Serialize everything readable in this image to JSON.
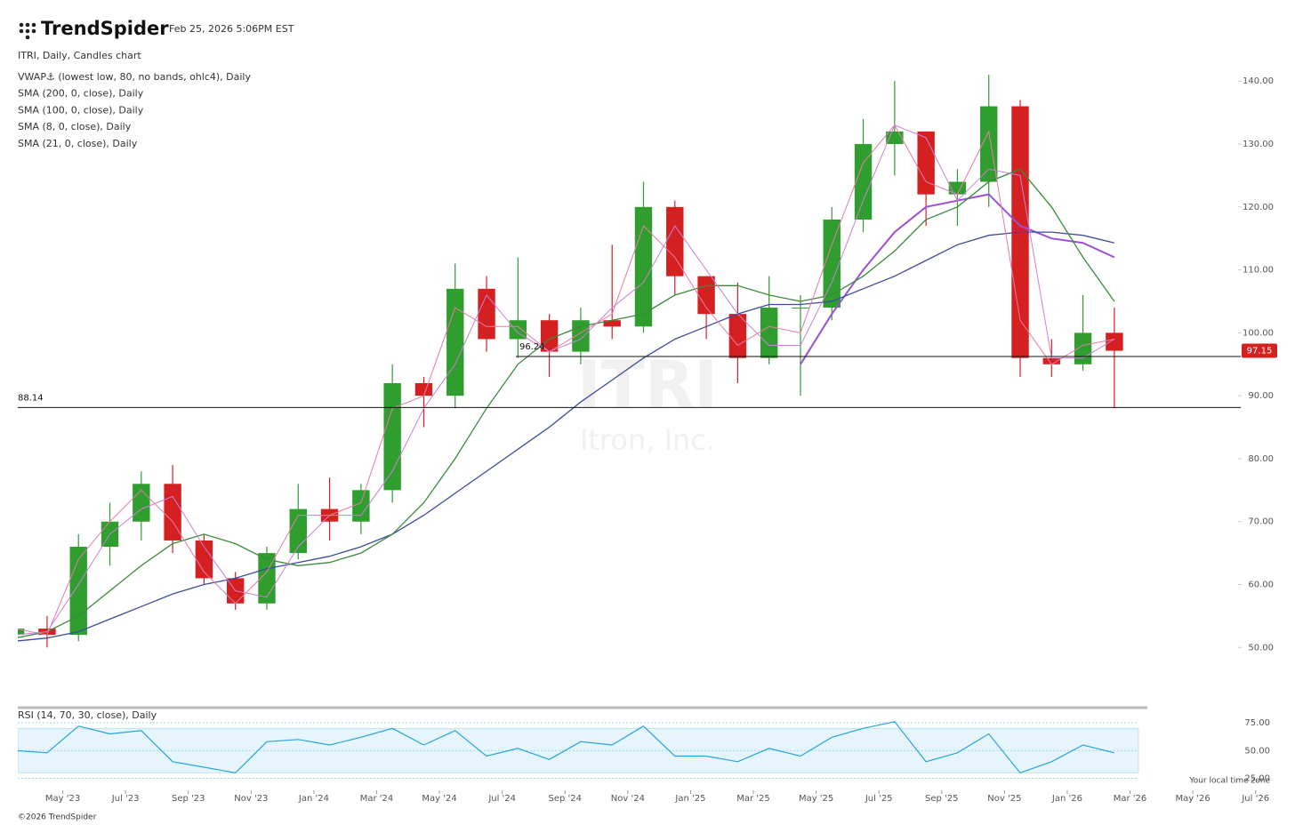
{
  "header": {
    "brand": "TrendSpider",
    "timestamp": "Feb 25, 2026 5:06PM EST"
  },
  "footer": {
    "copyright": "©2026 TrendSpider",
    "timezone_note": "Your local time zone"
  },
  "chart_data": [
    {
      "type": "candlestick",
      "title": "ITRI, Daily, Candles chart",
      "watermark": "ITRI",
      "watermark_subtitle": "Itron, Inc.",
      "x": [
        "2023-03",
        "2023-04",
        "2023-05",
        "2023-06",
        "2023-07",
        "2023-08",
        "2023-09",
        "2023-10",
        "2023-11",
        "2023-12",
        "2024-01",
        "2024-02",
        "2024-03",
        "2024-04",
        "2024-05",
        "2024-06",
        "2024-07",
        "2024-08",
        "2024-09",
        "2024-10",
        "2024-11",
        "2024-12",
        "2025-01",
        "2025-02",
        "2025-03",
        "2025-04",
        "2025-05",
        "2025-06",
        "2025-07",
        "2025-08",
        "2025-09",
        "2025-10",
        "2025-11",
        "2025-12",
        "2026-01",
        "2026-02"
      ],
      "open": [
        52,
        53,
        52,
        66,
        70,
        76,
        67,
        61,
        57,
        65,
        72,
        70,
        75,
        92,
        90,
        107,
        99,
        102,
        97,
        102,
        101,
        120,
        109,
        103,
        96,
        104,
        104,
        118,
        130,
        132,
        122,
        124,
        136,
        96,
        95,
        100
      ],
      "high": [
        54,
        55,
        68,
        73,
        78,
        79,
        68,
        62,
        66,
        76,
        77,
        76,
        95,
        93,
        111,
        109,
        112,
        103,
        104,
        114,
        124,
        121,
        109,
        108,
        109,
        106,
        120,
        134,
        140,
        132,
        126,
        141,
        137,
        99,
        106,
        104
      ],
      "low": [
        51,
        50,
        51,
        63,
        67,
        65,
        60,
        56,
        56,
        64,
        67,
        68,
        73,
        85,
        88,
        97,
        96,
        93,
        95,
        99,
        100,
        106,
        99,
        92,
        95,
        90,
        102,
        116,
        125,
        117,
        117,
        120,
        93,
        93,
        94,
        88
      ],
      "close": [
        53,
        52,
        66,
        70,
        76,
        67,
        61,
        57,
        65,
        72,
        70,
        75,
        92,
        90,
        107,
        99,
        102,
        97,
        102,
        101,
        120,
        109,
        103,
        96,
        104,
        104,
        118,
        130,
        132,
        122,
        124,
        136,
        96,
        95,
        100,
        97.15
      ],
      "up_color": "#2f9e2f",
      "down_color": "#d42020",
      "series": [
        {
          "name": "VWAP⚓ (lowest low, 80, no bands, ohlc4), Daily",
          "color": "#9a4fd8",
          "values": [
            null,
            null,
            null,
            null,
            null,
            null,
            null,
            null,
            null,
            null,
            null,
            null,
            null,
            null,
            null,
            null,
            null,
            null,
            null,
            null,
            null,
            null,
            null,
            null,
            null,
            95,
            103,
            110,
            116,
            120,
            121,
            122,
            117,
            115,
            114.3,
            112
          ]
        },
        {
          "name": "SMA (200, 0, close), Daily",
          "color": "#3d4b9c",
          "values": [
            51,
            51.5,
            52.5,
            54.5,
            56.5,
            58.5,
            60,
            61,
            62.5,
            63.5,
            64.5,
            66,
            68,
            71,
            74.5,
            78,
            81.5,
            85,
            89,
            92.5,
            96,
            99,
            101,
            103,
            104.5,
            104.5,
            105,
            107,
            109,
            111.5,
            114,
            115.5,
            116,
            116,
            115.5,
            114.3
          ]
        },
        {
          "name": "SMA (100, 0, close), Daily",
          "color": "#3b8a3b",
          "values": [
            51.5,
            52.5,
            55,
            59,
            63,
            66.5,
            68,
            66.5,
            64,
            63,
            63.5,
            65,
            68,
            73,
            80,
            88,
            95,
            99,
            101,
            102,
            103,
            106,
            107.5,
            107.5,
            106,
            105,
            106,
            109,
            113,
            118,
            120,
            124,
            126,
            120,
            112,
            105
          ]
        },
        {
          "name": "SMA (8, 0, close), Daily",
          "color": "#e77aa6",
          "values": [
            53,
            52,
            64,
            70,
            75,
            70,
            62,
            57,
            62,
            71,
            71,
            73,
            88,
            90,
            104,
            101,
            101,
            97,
            100,
            103,
            117,
            112,
            104,
            98,
            101,
            100,
            114,
            127,
            133,
            124,
            122,
            132,
            102,
            95,
            98,
            99
          ]
        },
        {
          "name": "SMA (21, 0, close), Daily",
          "color": "#cc7fd6",
          "values": [
            52,
            52.5,
            60,
            68,
            72,
            74,
            66,
            59,
            58,
            66,
            71,
            71,
            78,
            88,
            95,
            106,
            100,
            97,
            99,
            104,
            108,
            117,
            110,
            103,
            98,
            98,
            108,
            121,
            133,
            131,
            121,
            126,
            125,
            96,
            96,
            99
          ]
        }
      ],
      "hlines": [
        96.24,
        88.14
      ],
      "last_price": 97.15,
      "ylim": [
        41,
        143
      ],
      "yticks": [
        {
          "value": 50,
          "label": "50.00"
        },
        {
          "value": 60,
          "label": "60.00"
        },
        {
          "value": 70,
          "label": "70.00"
        },
        {
          "value": 80,
          "label": "80.00"
        },
        {
          "value": 90,
          "label": "90.00"
        },
        {
          "value": 100,
          "label": "100.00"
        },
        {
          "value": 110,
          "label": "110.00"
        },
        {
          "value": 120,
          "label": "120.00"
        },
        {
          "value": 130,
          "label": "130.00"
        },
        {
          "value": 140,
          "label": "140.00"
        }
      ],
      "xlim": [
        "2023-03",
        "2026-08"
      ],
      "xticks": [
        {
          "value": "2023-05",
          "label": "May '23"
        },
        {
          "value": "2023-07",
          "label": "Jul '23"
        },
        {
          "value": "2023-09",
          "label": "Sep '23"
        },
        {
          "value": "2023-11",
          "label": "Nov '23"
        },
        {
          "value": "2024-01",
          "label": "Jan '24"
        },
        {
          "value": "2024-03",
          "label": "Mar '24"
        },
        {
          "value": "2024-05",
          "label": "May '24"
        },
        {
          "value": "2024-07",
          "label": "Jul '24"
        },
        {
          "value": "2024-09",
          "label": "Sep '24"
        },
        {
          "value": "2024-11",
          "label": "Nov '24"
        },
        {
          "value": "2025-01",
          "label": "Jan '25"
        },
        {
          "value": "2025-03",
          "label": "Mar '25"
        },
        {
          "value": "2025-05",
          "label": "May '25"
        },
        {
          "value": "2025-07",
          "label": "Jul '25"
        },
        {
          "value": "2025-09",
          "label": "Sep '25"
        },
        {
          "value": "2025-11",
          "label": "Nov '25"
        },
        {
          "value": "2026-01",
          "label": "Jan '26"
        },
        {
          "value": "2026-03",
          "label": "Mar '26"
        },
        {
          "value": "2026-05",
          "label": "May '26"
        },
        {
          "value": "2026-07",
          "label": "Jul '26"
        }
      ]
    },
    {
      "type": "line",
      "series": [
        {
          "name": "RSI (14, 70, 30, close), Daily",
          "color": "#29a3d9",
          "values": [
            50,
            48,
            72,
            65,
            68,
            40,
            35,
            30,
            58,
            60,
            55,
            62,
            70,
            55,
            68,
            45,
            52,
            42,
            58,
            55,
            72,
            45,
            45,
            40,
            52,
            45,
            62,
            70,
            76,
            40,
            48,
            65,
            30,
            40,
            55,
            48
          ]
        }
      ],
      "band": [
        30,
        70
      ],
      "ylim": [
        15,
        87
      ],
      "yticks": [
        {
          "value": 25,
          "label": "25.00"
        },
        {
          "value": 50,
          "label": "50.00"
        },
        {
          "value": 75,
          "label": "75.00"
        }
      ]
    }
  ]
}
